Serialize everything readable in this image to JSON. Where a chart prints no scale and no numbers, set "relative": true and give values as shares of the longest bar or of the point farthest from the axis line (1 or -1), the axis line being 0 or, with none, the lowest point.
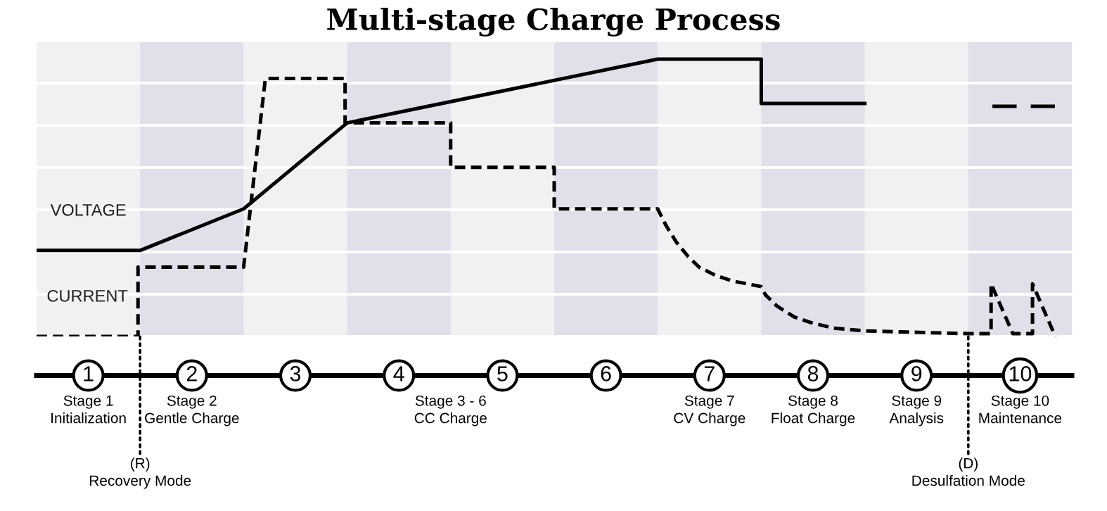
{
  "chart_data": {
    "type": "line",
    "title": "Multi-stage Charge Process",
    "relative": true,
    "grid": "y",
    "tick_labels": "x",
    "legend": false,
    "xlim": [
      0,
      10
    ],
    "xticks": [
      {
        "value": 0.5,
        "label": "1"
      },
      {
        "value": 1.5,
        "label": "2"
      },
      {
        "value": 2.5,
        "label": "3"
      },
      {
        "value": 3.5,
        "label": "4"
      },
      {
        "value": 4.5,
        "label": "5"
      },
      {
        "value": 5.5,
        "label": "6"
      },
      {
        "value": 6.5,
        "label": "7"
      },
      {
        "value": 7.5,
        "label": "8"
      },
      {
        "value": 8.5,
        "label": "9"
      },
      {
        "value": 9.5,
        "label": "10"
      }
    ],
    "series": [
      {
        "name": "VOLTAGE",
        "color": "#000000",
        "line_style": "solid",
        "x": [
          0,
          1,
          2,
          3,
          6,
          7,
          7,
          8,
          8.5,
          9.25,
          9.45,
          9.53,
          9.62,
          9.82
        ],
        "values": [
          0.31,
          0.31,
          0.46,
          0.77,
          1,
          1,
          0.84,
          0.84,
          null,
          0.83,
          0.83,
          null,
          0.83,
          0.83
        ]
      },
      {
        "name": "CURRENT",
        "color": "#000000",
        "line_style": "dashed",
        "x": [
          0,
          0.98,
          0.98,
          2,
          2.21,
          2.98,
          2.98,
          4,
          4,
          5,
          5,
          6,
          6.08,
          6.18,
          6.29,
          6.4,
          6.56,
          6.72,
          7,
          7.04,
          7.15,
          7.32,
          7.48,
          7.7,
          8,
          9,
          9.22,
          9.22,
          9.43,
          9.62,
          9.62,
          9.84
        ],
        "values": [
          0,
          0,
          0.25,
          0.25,
          0.93,
          0.93,
          0.77,
          0.77,
          0.61,
          0.61,
          0.46,
          0.46,
          0.4,
          0.34,
          0.29,
          0.25,
          0.22,
          0.2,
          0.18,
          0.15,
          0.11,
          0.07,
          0.05,
          0.03,
          0.02,
          0.01,
          0.01,
          0.19,
          0.01,
          0.01,
          0.19,
          0.0
        ]
      }
    ],
    "bands": [
      {
        "axis": "x",
        "from": 1,
        "to": 2,
        "color": "#e3dfea"
      },
      {
        "axis": "x",
        "from": 3,
        "to": 4,
        "color": "#e3dfea"
      },
      {
        "axis": "x",
        "from": 5,
        "to": 6,
        "color": "#e3dfea"
      },
      {
        "axis": "x",
        "from": 7,
        "to": 8,
        "color": "#e3dfea"
      },
      {
        "axis": "x",
        "from": 9,
        "to": 10,
        "color": "#e3dfea"
      }
    ],
    "annotations": [
      "Stage 1\nInitialization",
      "Stage 2\nGentle Charge",
      "Stage 3 - 6\nCC Charge",
      "Stage 7\nCV Charge",
      "Stage 8\nFloat Charge",
      "Stage 9\nAnalysis",
      "Stage 10\nMaintenance",
      "(R)\nRecovery Mode",
      "(D)\nDesulfation Mode"
    ]
  }
}
